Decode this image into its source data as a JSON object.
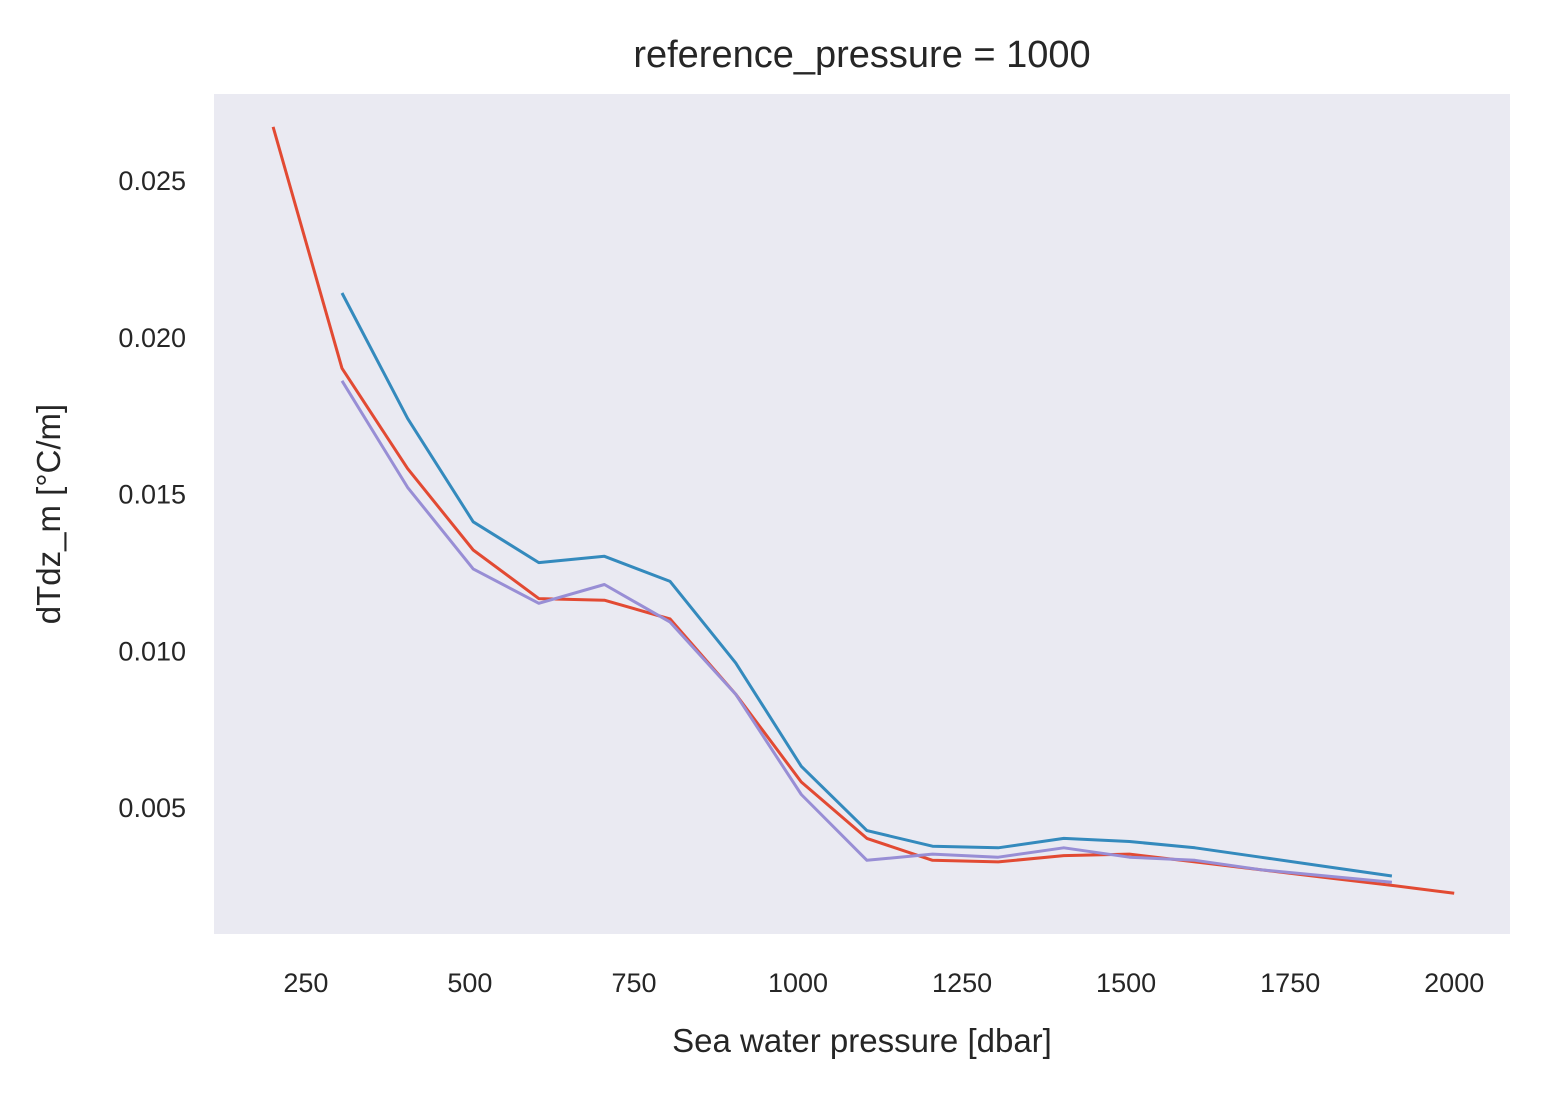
{
  "chart_data": {
    "type": "line",
    "title": "reference_pressure = 1000",
    "xlabel": "Sea water pressure [dbar]",
    "ylabel": "dTdz_m [°C/m]",
    "xlim": [
      110,
      2085
    ],
    "ylim": [
      0.00095,
      0.02775
    ],
    "x_ticks": [
      250,
      500,
      750,
      1000,
      1250,
      1500,
      1750,
      2000
    ],
    "y_ticks": [
      0.005,
      0.01,
      0.015,
      0.02,
      0.025
    ],
    "x_tick_labels": [
      "250",
      "500",
      "750",
      "1000",
      "1250",
      "1500",
      "1750",
      "2000"
    ],
    "y_tick_labels": [
      "0.005",
      "0.010",
      "0.015",
      "0.020",
      "0.025"
    ],
    "grid": false,
    "background": "#EAEAF2",
    "series": [
      {
        "name": "red",
        "color": "#E24A33",
        "x": [
          200,
          305,
          405,
          505,
          605,
          705,
          805,
          905,
          1005,
          1105,
          1205,
          1305,
          1405,
          1505,
          1605,
          1705,
          1805,
          1905,
          2000
        ],
        "y": [
          0.0267,
          0.019,
          0.0158,
          0.0132,
          0.01165,
          0.0116,
          0.011,
          0.0086,
          0.0058,
          0.004,
          0.0033,
          0.00325,
          0.00345,
          0.0035,
          0.00325,
          0.003,
          0.00275,
          0.0025,
          0.00225
        ]
      },
      {
        "name": "blue",
        "color": "#348ABD",
        "x": [
          305,
          405,
          505,
          605,
          705,
          805,
          905,
          1005,
          1105,
          1205,
          1305,
          1405,
          1505,
          1605,
          1705,
          1805,
          1905
        ],
        "y": [
          0.0214,
          0.0174,
          0.0141,
          0.0128,
          0.013,
          0.0122,
          0.0096,
          0.0063,
          0.00425,
          0.00375,
          0.0037,
          0.004,
          0.0039,
          0.0037,
          0.0034,
          0.0031,
          0.0028
        ]
      },
      {
        "name": "purple",
        "color": "#988ED5",
        "x": [
          305,
          405,
          505,
          605,
          705,
          805,
          905,
          1005,
          1105,
          1205,
          1305,
          1405,
          1505,
          1605,
          1705,
          1805,
          1905
        ],
        "y": [
          0.0186,
          0.0152,
          0.0126,
          0.0115,
          0.0121,
          0.0109,
          0.0086,
          0.0054,
          0.0033,
          0.0035,
          0.0034,
          0.0037,
          0.0034,
          0.0033,
          0.003,
          0.0028,
          0.0026
        ]
      }
    ]
  }
}
